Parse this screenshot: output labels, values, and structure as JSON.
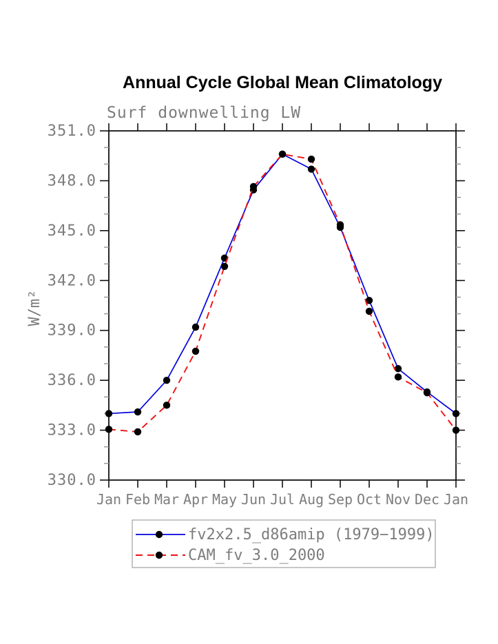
{
  "title": "Annual Cycle Global Mean Climatology",
  "subtitle": "Surf downwelling LW",
  "chart_data": {
    "type": "line",
    "title": "Annual Cycle Global Mean Climatology",
    "subtitle": "Surf downwelling LW",
    "xlabel": "",
    "ylabel": "W/m²",
    "categories": [
      "Jan",
      "Feb",
      "Mar",
      "Apr",
      "May",
      "Jun",
      "Jul",
      "Aug",
      "Sep",
      "Oct",
      "Nov",
      "Dec",
      "Jan"
    ],
    "ylim": [
      330.0,
      351.0
    ],
    "ytick_major_step": 3.0,
    "ytick_minor_step": 1.0,
    "ytick_labels": [
      "330.0",
      "333.0",
      "336.0",
      "339.0",
      "342.0",
      "345.0",
      "348.0",
      "351.0"
    ],
    "grid": false,
    "legend_position": "bottom",
    "series": [
      {
        "name": "fv2x2.5_d86amip (1979−1999)",
        "color": "#0000e0",
        "line_style": "solid",
        "marker": "filled-circle",
        "marker_color": "#000000",
        "values": [
          334.0,
          334.1,
          336.0,
          339.2,
          343.35,
          347.45,
          349.6,
          348.7,
          345.2,
          340.8,
          336.7,
          335.3,
          334.0
        ]
      },
      {
        "name": "CAM_fv_3.0_2000",
        "color": "#ee1111",
        "line_style": "dashed",
        "marker": "filled-circle",
        "marker_color": "#000000",
        "values": [
          333.05,
          332.9,
          334.5,
          337.75,
          342.85,
          347.65,
          349.6,
          349.3,
          345.35,
          340.15,
          336.2,
          335.25,
          333.0
        ]
      }
    ]
  }
}
